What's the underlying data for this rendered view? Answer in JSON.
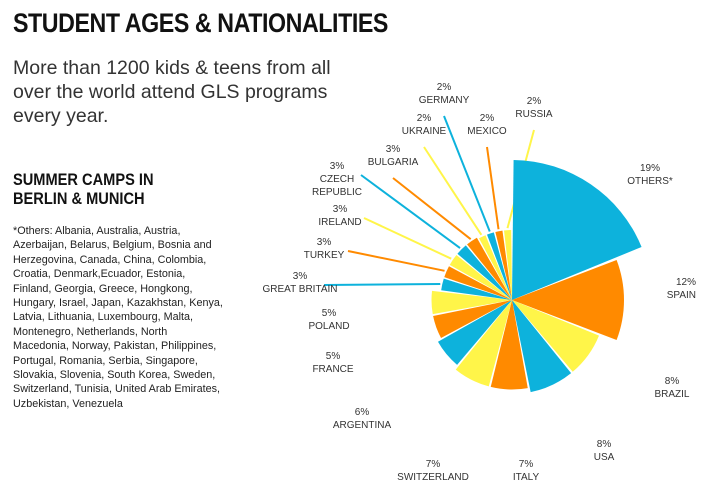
{
  "header": {
    "title": "STUDENT AGES & NATIONALITIES",
    "intro": "More than 1200 kids & teens from all over the world attend GLS programs every year."
  },
  "section": {
    "title": "SUMMER CAMPS IN BERLIN & MUNICH",
    "footnote": "*Others: Albania, Australia, Austria, Azerbaijan, Belarus, Belgium, Bosnia and Herzegovina, Canada, China, Colombia, Croatia, Denmark,Ecuador, Estonia, Finland, Georgia, Greece, Hongkong, Hungary, Israel, Japan, Kazakhstan, Kenya, Latvia, Lithuania, Luxembourg, Malta, Montenegro, Netherlands, North Macedonia, Norway, Pakistan, Philippines, Portugal, Romania, Serbia, Singapore, Slovakia, Slovenia, South Korea, Sweden, Switzerland, Tunisia, United Arab Emirates, Uzbekistan, Venezuela"
  },
  "colors": {
    "blue": "#0db2dc",
    "orange": "#ff8a00",
    "yellow": "#fff549"
  },
  "chart_data": {
    "type": "pie",
    "title": "",
    "unit": "%",
    "slices": [
      {
        "label": "OTHERS*",
        "value": 19,
        "display": "19%",
        "color": "#0db2dc"
      },
      {
        "label": "SPAIN",
        "value": 12,
        "display": "12%",
        "color": "#ff8a00"
      },
      {
        "label": "BRAZIL",
        "value": 8,
        "display": "8%",
        "color": "#fff549"
      },
      {
        "label": "USA",
        "value": 8,
        "display": "8%",
        "color": "#0db2dc"
      },
      {
        "label": "ITALY",
        "value": 7,
        "display": "7%",
        "color": "#ff8a00"
      },
      {
        "label": "SWITZERLAND",
        "value": 7,
        "display": "7%",
        "color": "#fff549"
      },
      {
        "label": "ARGENTINA",
        "value": 6,
        "display": "6%",
        "color": "#0db2dc"
      },
      {
        "label": "FRANCE",
        "value": 5,
        "display": "5%",
        "color": "#ff8a00"
      },
      {
        "label": "POLAND",
        "value": 5,
        "display": "5%",
        "color": "#fff549"
      },
      {
        "label": "GREAT BRITAIN",
        "value": 3,
        "display": "3%",
        "color": "#0db2dc"
      },
      {
        "label": "TURKEY",
        "value": 3,
        "display": "3%",
        "color": "#ff8a00"
      },
      {
        "label": "IRELAND",
        "value": 3,
        "display": "3%",
        "color": "#fff549"
      },
      {
        "label": "CZECH REPUBLIC",
        "value": 3,
        "display": "3%",
        "color": "#0db2dc"
      },
      {
        "label": "BULGARIA",
        "value": 3,
        "display": "3%",
        "color": "#ff8a00"
      },
      {
        "label": "UKRAINE",
        "value": 2,
        "display": "2%",
        "color": "#fff549"
      },
      {
        "label": "GERMANY",
        "value": 2,
        "display": "2%",
        "color": "#0db2dc"
      },
      {
        "label": "MEXICO",
        "value": 2,
        "display": "2%",
        "color": "#ff8a00"
      },
      {
        "label": "RUSSIA",
        "value": 2,
        "display": "2%",
        "color": "#fff549"
      }
    ]
  }
}
